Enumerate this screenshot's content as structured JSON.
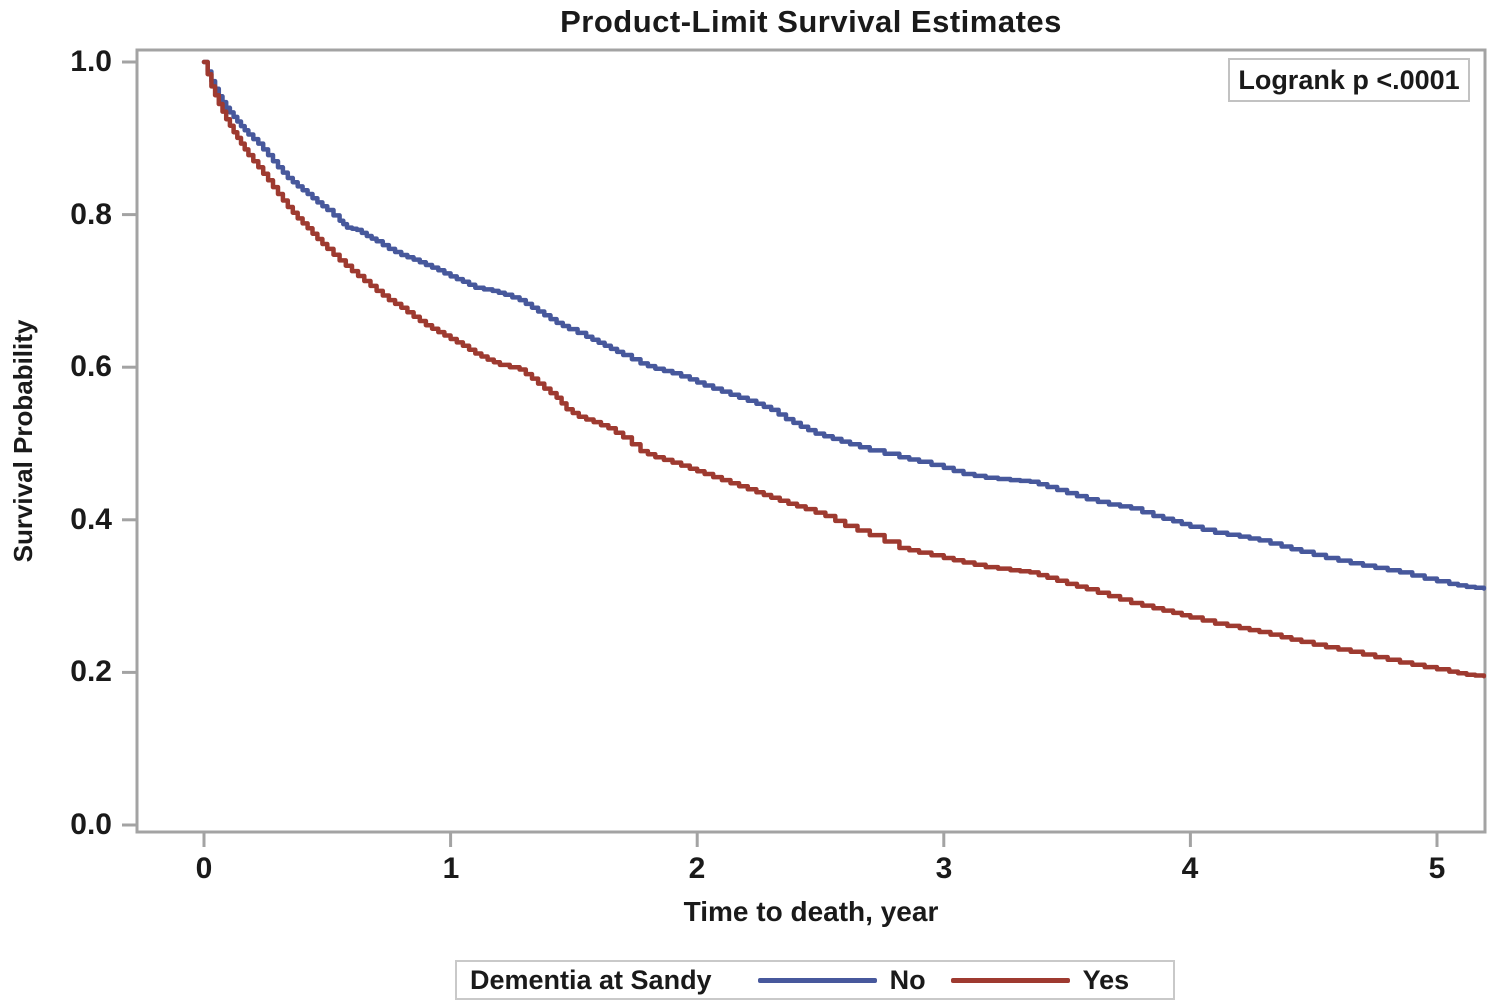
{
  "chart_data": {
    "type": "line",
    "subtype": "kaplan-meier-step-curves",
    "title": "Product-Limit Survival Estimates",
    "xlabel": "Time to death, year",
    "ylabel": "Survival Probability",
    "annotation": "Logrank p <.0001",
    "xlim": [
      -0.3,
      5.3
    ],
    "ylim": [
      0.0,
      1.0
    ],
    "grid": false,
    "axis_color": "#a3a3a3",
    "xticks": [
      0,
      1,
      2,
      3,
      4,
      5
    ],
    "yticks": [
      1.0,
      0.8,
      0.6,
      0.4,
      0.2,
      0.0
    ],
    "xtick_labels": [
      "0",
      "1",
      "2",
      "3",
      "4",
      "5"
    ],
    "ytick_labels": [
      "1.0",
      "0.8",
      "0.6",
      "0.4",
      "0.2",
      "0.0"
    ],
    "legend": {
      "position": "bottom",
      "title": "Dementia at Sandy",
      "entries": [
        {
          "label": "No",
          "color": "#47589c"
        },
        {
          "label": "Yes",
          "color": "#9e3a30"
        }
      ]
    },
    "series": [
      {
        "name": "No",
        "color": "#47589c",
        "points": [
          [
            0,
            1.0
          ],
          [
            0.03,
            0.975
          ],
          [
            0.06,
            0.955
          ],
          [
            0.09,
            0.94
          ],
          [
            0.12,
            0.928
          ],
          [
            0.15,
            0.916
          ],
          [
            0.18,
            0.905
          ],
          [
            0.22,
            0.893
          ],
          [
            0.26,
            0.878
          ],
          [
            0.3,
            0.862
          ],
          [
            0.34,
            0.848
          ],
          [
            0.38,
            0.837
          ],
          [
            0.42,
            0.827
          ],
          [
            0.46,
            0.816
          ],
          [
            0.5,
            0.806
          ],
          [
            0.55,
            0.792
          ],
          [
            0.58,
            0.783
          ],
          [
            0.62,
            0.78
          ],
          [
            0.66,
            0.772
          ],
          [
            0.7,
            0.765
          ],
          [
            0.75,
            0.755
          ],
          [
            0.8,
            0.747
          ],
          [
            0.85,
            0.741
          ],
          [
            0.9,
            0.734
          ],
          [
            0.95,
            0.727
          ],
          [
            1.0,
            0.719
          ],
          [
            1.05,
            0.712
          ],
          [
            1.1,
            0.704
          ],
          [
            1.17,
            0.7
          ],
          [
            1.22,
            0.695
          ],
          [
            1.28,
            0.688
          ],
          [
            1.33,
            0.678
          ],
          [
            1.38,
            0.668
          ],
          [
            1.43,
            0.658
          ],
          [
            1.48,
            0.65
          ],
          [
            1.55,
            0.64
          ],
          [
            1.6,
            0.632
          ],
          [
            1.65,
            0.624
          ],
          [
            1.7,
            0.616
          ],
          [
            1.77,
            0.605
          ],
          [
            1.83,
            0.598
          ],
          [
            1.9,
            0.592
          ],
          [
            1.97,
            0.584
          ],
          [
            2.03,
            0.576
          ],
          [
            2.1,
            0.568
          ],
          [
            2.17,
            0.56
          ],
          [
            2.24,
            0.552
          ],
          [
            2.3,
            0.544
          ],
          [
            2.36,
            0.532
          ],
          [
            2.42,
            0.522
          ],
          [
            2.48,
            0.513
          ],
          [
            2.55,
            0.506
          ],
          [
            2.62,
            0.499
          ],
          [
            2.7,
            0.491
          ],
          [
            2.82,
            0.482
          ],
          [
            2.9,
            0.476
          ],
          [
            3.0,
            0.468
          ],
          [
            3.08,
            0.46
          ],
          [
            3.17,
            0.455
          ],
          [
            3.27,
            0.452
          ],
          [
            3.35,
            0.45
          ],
          [
            3.42,
            0.443
          ],
          [
            3.5,
            0.435
          ],
          [
            3.58,
            0.427
          ],
          [
            3.67,
            0.42
          ],
          [
            3.76,
            0.415
          ],
          [
            3.85,
            0.405
          ],
          [
            3.93,
            0.398
          ],
          [
            4.0,
            0.391
          ],
          [
            4.1,
            0.383
          ],
          [
            4.2,
            0.378
          ],
          [
            4.28,
            0.373
          ],
          [
            4.37,
            0.365
          ],
          [
            4.45,
            0.358
          ],
          [
            4.55,
            0.35
          ],
          [
            4.65,
            0.343
          ],
          [
            4.75,
            0.337
          ],
          [
            4.85,
            0.331
          ],
          [
            4.95,
            0.323
          ],
          [
            5.05,
            0.316
          ],
          [
            5.12,
            0.312
          ],
          [
            5.19,
            0.31
          ]
        ]
      },
      {
        "name": "Yes",
        "color": "#9e3a30",
        "points": [
          [
            0,
            1.0
          ],
          [
            0.03,
            0.968
          ],
          [
            0.06,
            0.945
          ],
          [
            0.09,
            0.925
          ],
          [
            0.12,
            0.908
          ],
          [
            0.15,
            0.893
          ],
          [
            0.18,
            0.878
          ],
          [
            0.22,
            0.862
          ],
          [
            0.26,
            0.845
          ],
          [
            0.3,
            0.827
          ],
          [
            0.34,
            0.81
          ],
          [
            0.38,
            0.795
          ],
          [
            0.42,
            0.782
          ],
          [
            0.46,
            0.768
          ],
          [
            0.5,
            0.755
          ],
          [
            0.55,
            0.74
          ],
          [
            0.6,
            0.726
          ],
          [
            0.65,
            0.713
          ],
          [
            0.7,
            0.7
          ],
          [
            0.75,
            0.688
          ],
          [
            0.8,
            0.678
          ],
          [
            0.85,
            0.666
          ],
          [
            0.9,
            0.655
          ],
          [
            0.95,
            0.646
          ],
          [
            1.0,
            0.637
          ],
          [
            1.05,
            0.628
          ],
          [
            1.1,
            0.618
          ],
          [
            1.15,
            0.61
          ],
          [
            1.2,
            0.603
          ],
          [
            1.28,
            0.597
          ],
          [
            1.33,
            0.585
          ],
          [
            1.38,
            0.572
          ],
          [
            1.43,
            0.56
          ],
          [
            1.47,
            0.545
          ],
          [
            1.52,
            0.535
          ],
          [
            1.58,
            0.528
          ],
          [
            1.64,
            0.52
          ],
          [
            1.7,
            0.508
          ],
          [
            1.77,
            0.49
          ],
          [
            1.83,
            0.482
          ],
          [
            1.9,
            0.475
          ],
          [
            1.97,
            0.467
          ],
          [
            2.03,
            0.46
          ],
          [
            2.1,
            0.452
          ],
          [
            2.17,
            0.444
          ],
          [
            2.24,
            0.436
          ],
          [
            2.3,
            0.429
          ],
          [
            2.37,
            0.421
          ],
          [
            2.44,
            0.414
          ],
          [
            2.52,
            0.405
          ],
          [
            2.6,
            0.392
          ],
          [
            2.7,
            0.38
          ],
          [
            2.82,
            0.363
          ],
          [
            2.9,
            0.357
          ],
          [
            3.0,
            0.35
          ],
          [
            3.08,
            0.344
          ],
          [
            3.17,
            0.338
          ],
          [
            3.27,
            0.334
          ],
          [
            3.35,
            0.331
          ],
          [
            3.42,
            0.324
          ],
          [
            3.5,
            0.316
          ],
          [
            3.58,
            0.309
          ],
          [
            3.67,
            0.3
          ],
          [
            3.76,
            0.291
          ],
          [
            3.85,
            0.284
          ],
          [
            3.93,
            0.278
          ],
          [
            4.0,
            0.272
          ],
          [
            4.1,
            0.264
          ],
          [
            4.2,
            0.258
          ],
          [
            4.28,
            0.253
          ],
          [
            4.37,
            0.246
          ],
          [
            4.45,
            0.24
          ],
          [
            4.55,
            0.233
          ],
          [
            4.65,
            0.227
          ],
          [
            4.75,
            0.22
          ],
          [
            4.85,
            0.213
          ],
          [
            4.95,
            0.207
          ],
          [
            5.05,
            0.201
          ],
          [
            5.12,
            0.197
          ],
          [
            5.19,
            0.195
          ]
        ]
      }
    ]
  }
}
